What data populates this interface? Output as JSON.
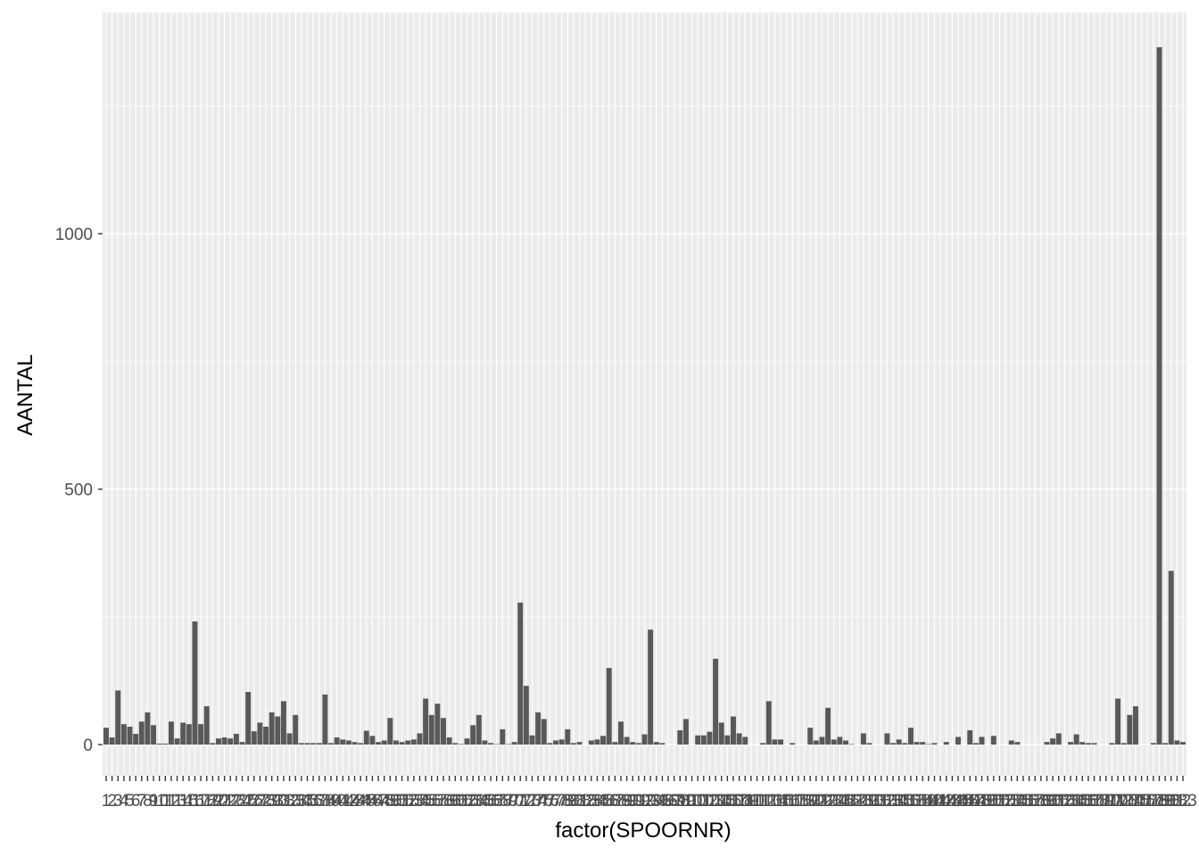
{
  "chart_data": {
    "type": "bar",
    "x_label": "factor(SPOORNR)",
    "y_label": "AANTAL",
    "color": "#595959",
    "categories": [
      "1",
      "2",
      "3",
      "4",
      "5",
      "6",
      "7",
      "8",
      "9",
      "10",
      "11",
      "12",
      "13",
      "14",
      "15",
      "16",
      "17",
      "18",
      "19",
      "20",
      "21",
      "22",
      "23",
      "24",
      "25",
      "26",
      "27",
      "28",
      "29",
      "30",
      "31",
      "32",
      "33",
      "34",
      "35",
      "36",
      "37",
      "38",
      "39",
      "40",
      "41",
      "42",
      "43",
      "44",
      "45",
      "46",
      "47",
      "48",
      "49",
      "50",
      "51",
      "52",
      "53",
      "54",
      "55",
      "56",
      "57",
      "58",
      "59",
      "60",
      "61",
      "62",
      "63",
      "64",
      "65",
      "66",
      "67",
      "68",
      "69",
      "70",
      "71",
      "72",
      "73",
      "74",
      "75",
      "76",
      "77",
      "78",
      "79",
      "80",
      "81",
      "82",
      "83",
      "84",
      "85",
      "86",
      "87",
      "88",
      "89",
      "90",
      "91",
      "92",
      "93",
      "94",
      "95",
      "96",
      "97",
      "98",
      "99",
      "100",
      "101",
      "102",
      "103",
      "104",
      "105",
      "106",
      "107",
      "108",
      "109",
      "110",
      "111",
      "112",
      "113",
      "114",
      "115",
      "116",
      "117",
      "118",
      "119",
      "120",
      "121",
      "122",
      "123",
      "124",
      "125",
      "126",
      "127",
      "128",
      "129",
      "130",
      "131",
      "132",
      "133",
      "134",
      "135",
      "136",
      "137",
      "138",
      "139",
      "140",
      "141",
      "142",
      "143",
      "144",
      "145",
      "146",
      "147",
      "148",
      "149",
      "150",
      "151",
      "152",
      "153",
      "154",
      "155",
      "156",
      "157",
      "158",
      "159",
      "160",
      "161",
      "162",
      "163",
      "164",
      "165",
      "166",
      "167",
      "168",
      "169",
      "170",
      "171",
      "172",
      "173",
      "174",
      "175",
      "176",
      "177",
      "178",
      "179",
      "180",
      "181",
      "182",
      "183"
    ],
    "values": [
      33,
      14,
      106,
      40,
      35,
      21,
      45,
      63,
      38,
      2,
      2,
      45,
      12,
      43,
      40,
      241,
      40,
      75,
      3,
      12,
      14,
      12,
      21,
      5,
      103,
      26,
      43,
      35,
      63,
      55,
      85,
      22,
      58,
      3,
      3,
      3,
      3,
      98,
      3,
      14,
      10,
      8,
      5,
      3,
      27,
      17,
      5,
      8,
      52,
      8,
      5,
      8,
      10,
      22,
      90,
      58,
      80,
      52,
      14,
      3,
      1,
      12,
      38,
      58,
      8,
      3,
      1,
      30,
      1,
      5,
      278,
      115,
      18,
      63,
      50,
      3,
      8,
      10,
      30,
      3,
      5,
      0,
      8,
      10,
      17,
      150,
      5,
      45,
      15,
      5,
      3,
      20,
      225,
      5,
      3,
      0,
      0,
      28,
      50,
      0,
      18,
      18,
      25,
      168,
      43,
      18,
      55,
      22,
      15,
      0,
      0,
      3,
      85,
      10,
      10,
      0,
      3,
      0,
      0,
      33,
      8,
      15,
      72,
      10,
      15,
      8,
      1,
      0,
      22,
      3,
      0,
      0,
      22,
      3,
      10,
      3,
      33,
      5,
      5,
      1,
      3,
      0,
      5,
      0,
      15,
      0,
      28,
      3,
      15,
      0,
      17,
      0,
      0,
      8,
      5,
      0,
      0,
      0,
      0,
      5,
      12,
      22,
      0,
      5,
      20,
      5,
      3,
      3,
      0,
      0,
      3,
      90,
      3,
      58,
      75,
      0,
      0,
      3,
      1365,
      3,
      340,
      8,
      5
    ],
    "ylim": [
      -61,
      1433
    ],
    "yticks": [
      0,
      500,
      1000
    ],
    "minor_yticks": [
      250,
      750,
      1250
    ],
    "grid": true
  }
}
